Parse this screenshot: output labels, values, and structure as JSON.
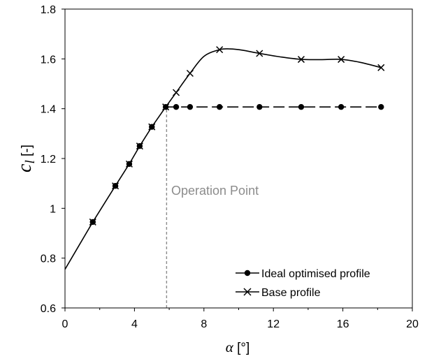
{
  "chart_data": {
    "type": "line",
    "title": "",
    "xlabel_symbol": "α",
    "xlabel_unit": " [°]",
    "ylabel_symbol": "c",
    "ylabel_sub": "l",
    "ylabel_unit": " [-]",
    "xlim": [
      0,
      20
    ],
    "ylim": [
      0.6,
      1.8
    ],
    "x_ticks": [
      0,
      4,
      8,
      12,
      16,
      20
    ],
    "y_ticks": [
      0.6,
      0.8,
      1,
      1.2,
      1.4,
      1.6,
      1.8
    ],
    "y_tick_labels": [
      "0.6",
      "0.8",
      "1",
      "1.2",
      "1.4",
      "1.6",
      "1.8"
    ],
    "grid": false,
    "legend_position": "bottom-right",
    "series": [
      {
        "name": "Ideal optimised profile",
        "marker": "circle",
        "line_style": "dashed",
        "x": [
          1.6,
          2.9,
          3.7,
          4.3,
          5.0,
          5.8,
          6.4,
          7.2,
          8.9,
          11.2,
          13.6,
          15.9,
          18.2
        ],
        "y": [
          0.945,
          1.09,
          1.178,
          1.25,
          1.327,
          1.407,
          1.407,
          1.407,
          1.407,
          1.407,
          1.407,
          1.407,
          1.407
        ]
      },
      {
        "name": "Base profile",
        "marker": "x",
        "line_style": "solid",
        "x": [
          1.6,
          2.9,
          3.7,
          4.3,
          5.0,
          5.8,
          6.4,
          7.2,
          8.9,
          11.2,
          13.6,
          15.9,
          18.2
        ],
        "y": [
          0.945,
          1.09,
          1.178,
          1.25,
          1.327,
          1.407,
          1.465,
          1.542,
          1.637,
          1.622,
          1.598,
          1.598,
          1.565
        ]
      }
    ],
    "annotation": {
      "text": "Operation Point",
      "x": 5.85,
      "y_from": 0.6,
      "y_to": 1.407
    },
    "fit_line": {
      "x": [
        0,
        0.8,
        1.6,
        2.9,
        3.7,
        4.3,
        5.0,
        5.8
      ],
      "y": [
        0.755,
        0.85,
        0.945,
        1.09,
        1.178,
        1.25,
        1.327,
        1.407
      ]
    },
    "base_curve": {
      "x": [
        5.8,
        6.4,
        7.2,
        8.0,
        8.9,
        9.5,
        10.2,
        11.2,
        12.4,
        13.6,
        14.8,
        15.9,
        17.0,
        18.2
      ],
      "y": [
        1.407,
        1.465,
        1.542,
        1.61,
        1.637,
        1.64,
        1.635,
        1.622,
        1.608,
        1.598,
        1.597,
        1.598,
        1.586,
        1.565
      ]
    }
  }
}
